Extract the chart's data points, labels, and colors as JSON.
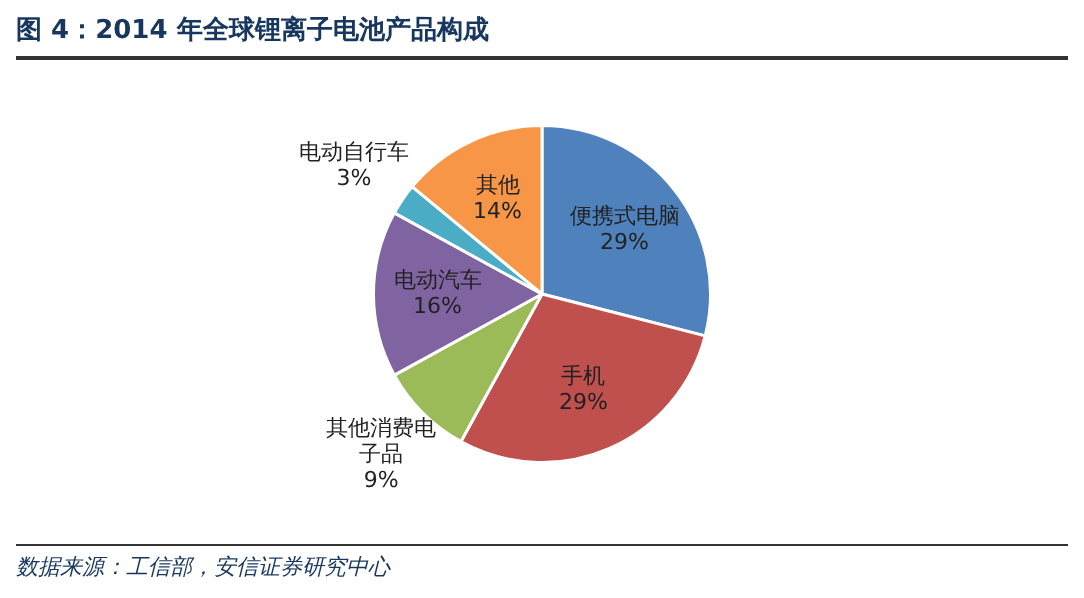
{
  "chart_data": {
    "type": "pie",
    "title": "图 4：2014 年全球锂离子电池产品构成",
    "categories": [
      "便携式电脑",
      "手机",
      "其他消费电子品",
      "电动汽车",
      "电动自行车",
      "其他"
    ],
    "values": [
      29,
      29,
      9,
      16,
      3,
      14
    ],
    "value_labels": [
      "29%",
      "29%",
      "9%",
      "16%",
      "3%",
      "14%"
    ],
    "colors": [
      "#4f81bd",
      "#c0504d",
      "#9bbb59",
      "#8064a2",
      "#4bacc6",
      "#f79646"
    ],
    "legend": false,
    "annotations": [
      "数据来源：工信部，安信证券研究中心"
    ]
  }
}
